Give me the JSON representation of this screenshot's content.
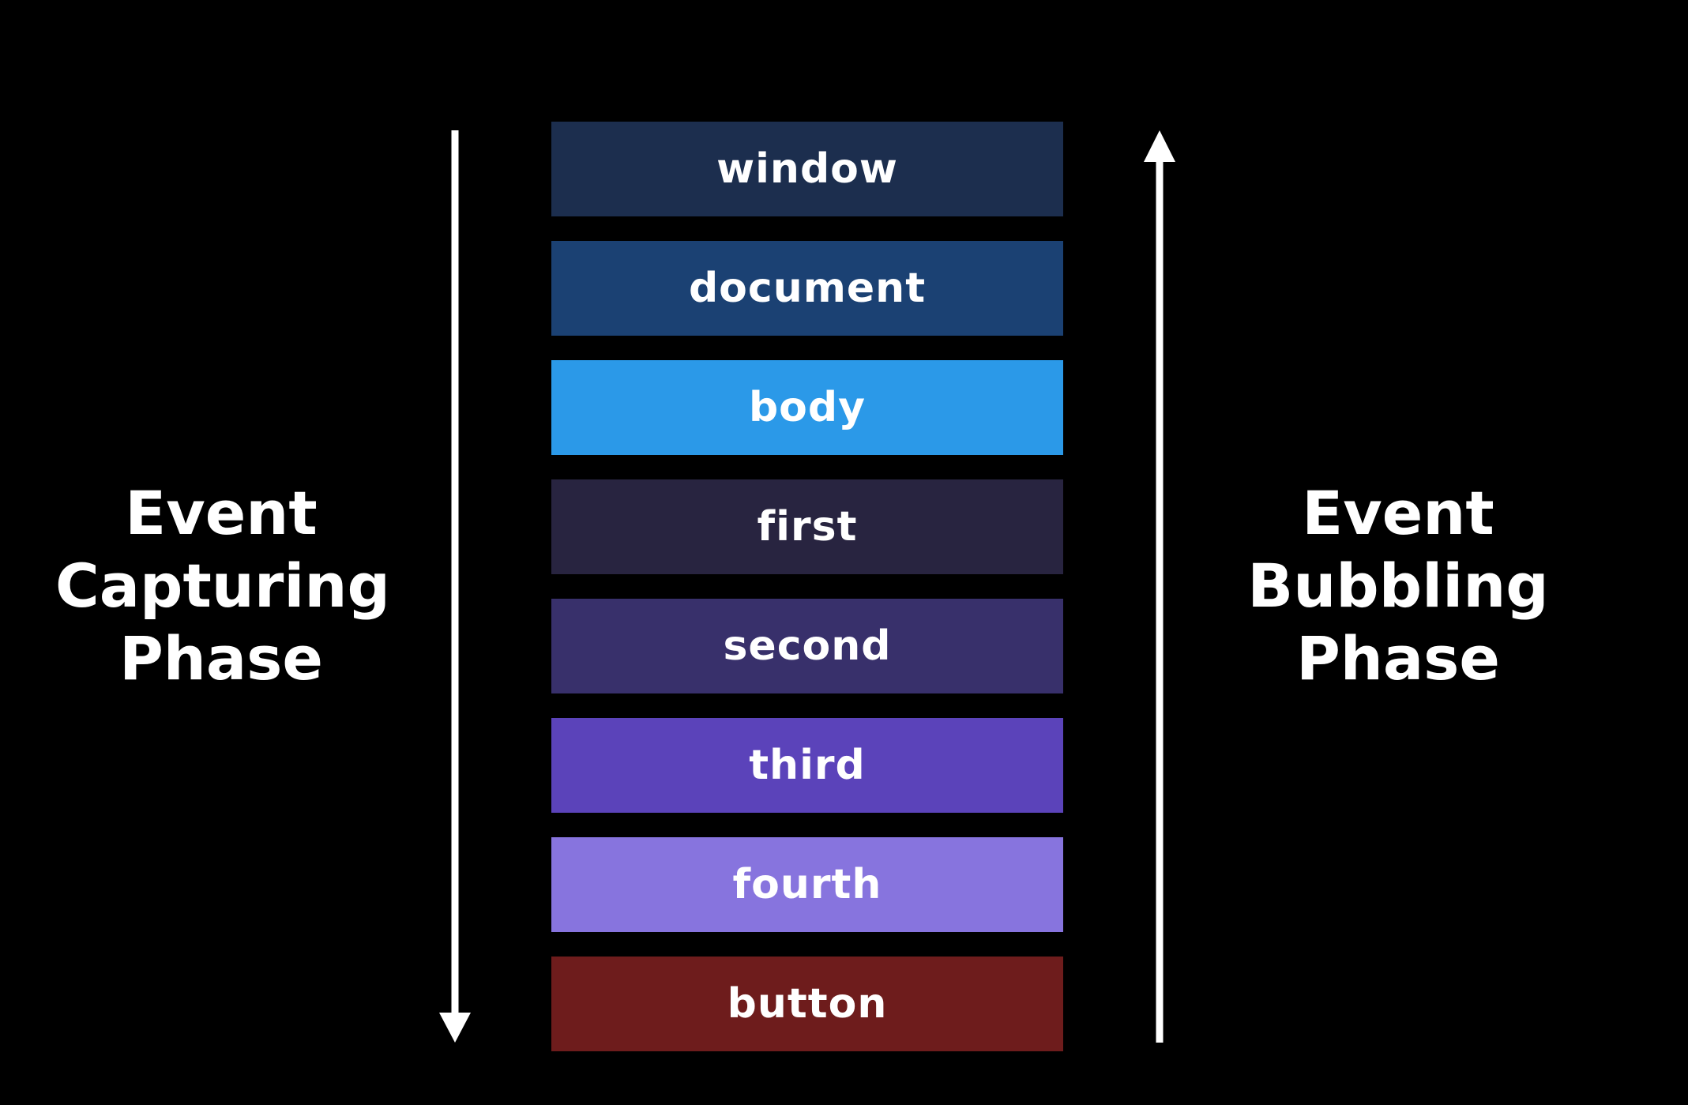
{
  "layers": [
    {
      "label": "window",
      "color": "#1c2e4e"
    },
    {
      "label": "document",
      "color": "#1b4173"
    },
    {
      "label": "body",
      "color": "#2b99e8"
    },
    {
      "label": "first",
      "color": "#282440"
    },
    {
      "label": "second",
      "color": "#38306b"
    },
    {
      "label": "third",
      "color": "#5b43ba"
    },
    {
      "label": "fourth",
      "color": "#8774de"
    },
    {
      "label": "button",
      "color": "#6e1c1c"
    }
  ],
  "capturing": {
    "line1": "Event",
    "line2": "Capturing",
    "line3": "Phase",
    "direction": "down"
  },
  "bubbling": {
    "line1": "Event",
    "line2": "Bubbling",
    "line3": "Phase",
    "direction": "up"
  },
  "colors": {
    "background": "#000000",
    "arrow": "#ffffff",
    "text": "#ffffff"
  }
}
